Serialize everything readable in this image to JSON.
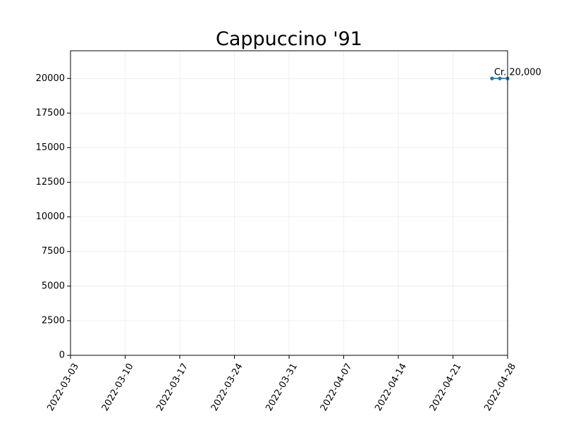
{
  "chart_data": {
    "type": "line",
    "title": "Cappuccino '91",
    "xlabel": "",
    "ylabel": "",
    "x_type": "date",
    "xlim": [
      "2022-03-03",
      "2022-04-28"
    ],
    "ylim": [
      0,
      22000
    ],
    "x_ticks": [
      "2022-03-03",
      "2022-03-10",
      "2022-03-17",
      "2022-03-24",
      "2022-03-31",
      "2022-04-07",
      "2022-04-14",
      "2022-04-21",
      "2022-04-28"
    ],
    "y_ticks": [
      0,
      2500,
      5000,
      7500,
      10000,
      12500,
      15000,
      17500,
      20000
    ],
    "grid": true,
    "series": [
      {
        "color": "#1f77b4",
        "x": [
          "2022-04-26",
          "2022-04-27",
          "2022-04-28"
        ],
        "values": [
          20000,
          20000,
          20000
        ]
      }
    ],
    "annotations": [
      {
        "text": "Cr. 20,000",
        "x": "2022-04-26",
        "y": 20000
      }
    ]
  }
}
